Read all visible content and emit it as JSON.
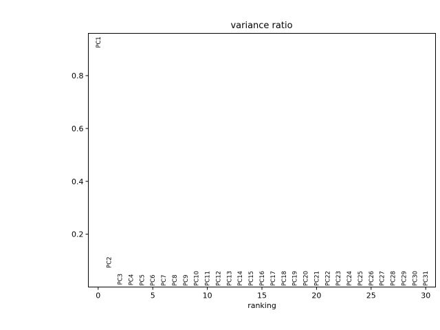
{
  "chart_data": {
    "type": "scatter",
    "title": "variance ratio",
    "xlabel": "ranking",
    "ylabel": "",
    "xlim": [
      -0.9,
      30.9
    ],
    "ylim": [
      0.0,
      0.96
    ],
    "xticks": [
      0,
      5,
      10,
      15,
      20,
      25,
      30
    ],
    "xtick_labels": [
      "0",
      "5",
      "10",
      "15",
      "20",
      "25",
      "30"
    ],
    "yticks": [
      0.2,
      0.4,
      0.6,
      0.8
    ],
    "ytick_labels": [
      "0.2",
      "0.4",
      "0.6",
      "0.8"
    ],
    "grid": false,
    "points": [
      {
        "label": "PC1",
        "x": 0,
        "y": 0.905
      },
      {
        "label": "PC2",
        "x": 1,
        "y": 0.072
      },
      {
        "label": "PC3",
        "x": 2,
        "y": 0.008
      },
      {
        "label": "PC4",
        "x": 3,
        "y": 0.006
      },
      {
        "label": "PC5",
        "x": 4,
        "y": 0.005
      },
      {
        "label": "PC6",
        "x": 5,
        "y": 0.004
      },
      {
        "label": "PC7",
        "x": 6,
        "y": 0.004
      },
      {
        "label": "PC8",
        "x": 7,
        "y": 0.004
      },
      {
        "label": "PC9",
        "x": 8,
        "y": 0.004
      },
      {
        "label": "PC10",
        "x": 9,
        "y": 0.004
      },
      {
        "label": "PC11",
        "x": 10,
        "y": 0.004
      },
      {
        "label": "PC12",
        "x": 11,
        "y": 0.004
      },
      {
        "label": "PC13",
        "x": 12,
        "y": 0.004
      },
      {
        "label": "PC14",
        "x": 13,
        "y": 0.004
      },
      {
        "label": "PC15",
        "x": 14,
        "y": 0.004
      },
      {
        "label": "PC16",
        "x": 15,
        "y": 0.004
      },
      {
        "label": "PC17",
        "x": 16,
        "y": 0.004
      },
      {
        "label": "PC18",
        "x": 17,
        "y": 0.004
      },
      {
        "label": "PC19",
        "x": 18,
        "y": 0.004
      },
      {
        "label": "PC20",
        "x": 19,
        "y": 0.004
      },
      {
        "label": "PC21",
        "x": 20,
        "y": 0.004
      },
      {
        "label": "PC22",
        "x": 21,
        "y": 0.004
      },
      {
        "label": "PC23",
        "x": 22,
        "y": 0.004
      },
      {
        "label": "PC24",
        "x": 23,
        "y": 0.004
      },
      {
        "label": "PC25",
        "x": 24,
        "y": 0.004
      },
      {
        "label": "PC26",
        "x": 25,
        "y": 0.004
      },
      {
        "label": "PC27",
        "x": 26,
        "y": 0.004
      },
      {
        "label": "PC28",
        "x": 27,
        "y": 0.004
      },
      {
        "label": "PC29",
        "x": 28,
        "y": 0.004
      },
      {
        "label": "PC30",
        "x": 29,
        "y": 0.004
      },
      {
        "label": "PC31",
        "x": 30,
        "y": 0.004
      }
    ]
  }
}
